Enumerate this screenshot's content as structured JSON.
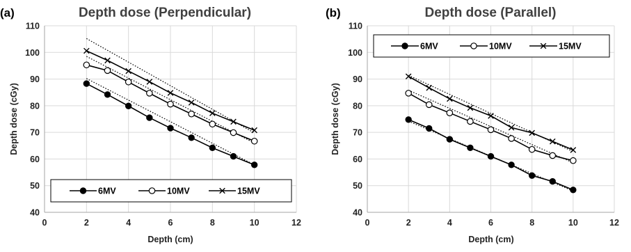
{
  "chart_data": [
    {
      "type": "line",
      "panel": "(a)",
      "title": "Depth dose (Perpendicular)",
      "xlabel": "Depth (cm)",
      "ylabel": "Depth dose (cGy)",
      "xlim": [
        0,
        12
      ],
      "ylim": [
        40,
        110
      ],
      "xticks": [
        "0",
        "2",
        "4",
        "6",
        "8",
        "10",
        "12"
      ],
      "yticks": [
        "40",
        "50",
        "60",
        "70",
        "80",
        "90",
        "100",
        "110"
      ],
      "grid": true,
      "legend_position": "bottom",
      "x": [
        2,
        3,
        4,
        5,
        6,
        7,
        8,
        9,
        10
      ],
      "series": [
        {
          "name": "6MV",
          "marker": "filled-circle",
          "values": [
            88.3,
            84.2,
            79.9,
            75.5,
            71.6,
            68.0,
            64.2,
            61.0,
            57.8
          ],
          "trend": [
            90.2,
            57.8
          ]
        },
        {
          "name": "10MV",
          "marker": "open-circle",
          "values": [
            95.3,
            93.2,
            88.9,
            84.7,
            80.6,
            76.9,
            73.1,
            69.9,
            66.7
          ],
          "trend": [
            98.5,
            66.0
          ]
        },
        {
          "name": "15MV",
          "marker": "cross",
          "values": [
            100.6,
            97.0,
            93.0,
            89.0,
            84.8,
            81.2,
            77.2,
            74.0,
            70.8
          ],
          "trend": [
            105.2,
            69.8
          ]
        }
      ]
    },
    {
      "type": "line",
      "panel": "(b)",
      "title": "Depth dose (Parallel)",
      "xlabel": "Depth (cm)",
      "ylabel": "Depth dose (cGy)",
      "xlim": [
        0,
        12
      ],
      "ylim": [
        40,
        110
      ],
      "xticks": [
        "0",
        "2",
        "4",
        "6",
        "8",
        "10",
        "12"
      ],
      "yticks": [
        "40",
        "50",
        "60",
        "70",
        "80",
        "90",
        "100",
        "110"
      ],
      "grid": true,
      "legend_position": "top",
      "x": [
        2,
        3,
        4,
        5,
        6,
        7,
        8,
        9,
        10
      ],
      "series": [
        {
          "name": "6MV",
          "marker": "filled-circle",
          "values": [
            74.8,
            71.5,
            67.4,
            64.2,
            61.0,
            57.8,
            53.8,
            51.6,
            48.4
          ],
          "trend": [
            74.2,
            48.0
          ]
        },
        {
          "name": "10MV",
          "marker": "open-circle",
          "values": [
            84.7,
            80.4,
            77.3,
            74.1,
            71.0,
            67.7,
            63.6,
            61.3,
            59.4
          ],
          "trend": [
            85.8,
            58.6
          ]
        },
        {
          "name": "15MV",
          "marker": "cross",
          "values": [
            91.0,
            86.7,
            82.6,
            79.2,
            76.2,
            71.8,
            69.8,
            66.6,
            63.4
          ],
          "trend": [
            91.4,
            62.8
          ]
        }
      ]
    }
  ]
}
